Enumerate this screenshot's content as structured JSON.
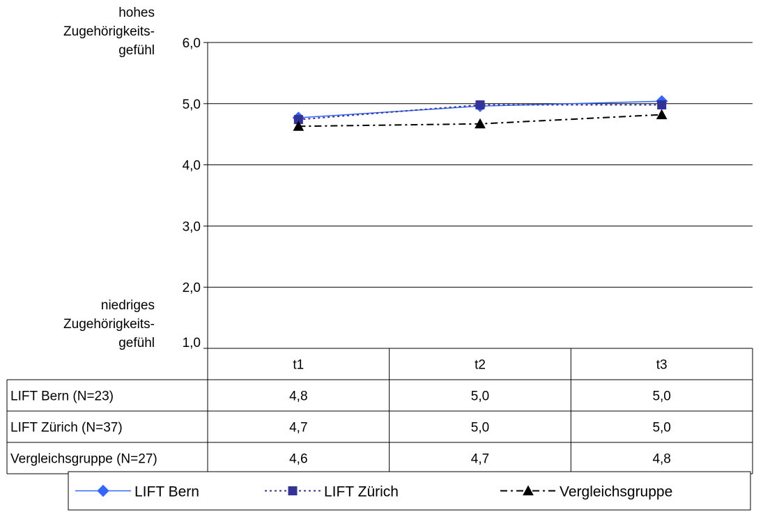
{
  "chart_data": {
    "type": "line",
    "title": "",
    "y_axis": {
      "label_top": [
        "hohes",
        "Zugehörigkeits-",
        "gefühl"
      ],
      "label_bottom": [
        "niedriges",
        "Zugehörigkeits-",
        "gefühl"
      ],
      "ylim": [
        1.0,
        6.0
      ],
      "ticks": [
        "1,0",
        "2,0",
        "3,0",
        "4,0",
        "5,0",
        "6,0"
      ],
      "tick_values": [
        1,
        2,
        3,
        4,
        5,
        6
      ]
    },
    "categories": [
      "t1",
      "t2",
      "t3"
    ],
    "series": [
      {
        "name": "LIFT Bern",
        "label": "LIFT Bern (N=23)",
        "values": [
          4.77,
          4.96,
          5.04
        ],
        "table_values": [
          "4,8",
          "5,0",
          "5,0"
        ],
        "color": "#3366ff",
        "marker": "diamond",
        "dash": "solid"
      },
      {
        "name": "LIFT Zürich",
        "label": "LIFT Zürich (N=37)",
        "values": [
          4.74,
          4.98,
          4.98
        ],
        "table_values": [
          "4,7",
          "5,0",
          "5,0"
        ],
        "color": "#333399",
        "marker": "square",
        "dash": "dotted"
      },
      {
        "name": "Vergleichsgruppe",
        "label": "Vergleichsgruppe (N=27)",
        "values": [
          4.63,
          4.67,
          4.82
        ],
        "table_values": [
          "4,6",
          "4,7",
          "4,8"
        ],
        "color": "#000000",
        "marker": "triangle",
        "dash": "dashdot"
      }
    ],
    "grid": true,
    "legend_position": "bottom"
  }
}
